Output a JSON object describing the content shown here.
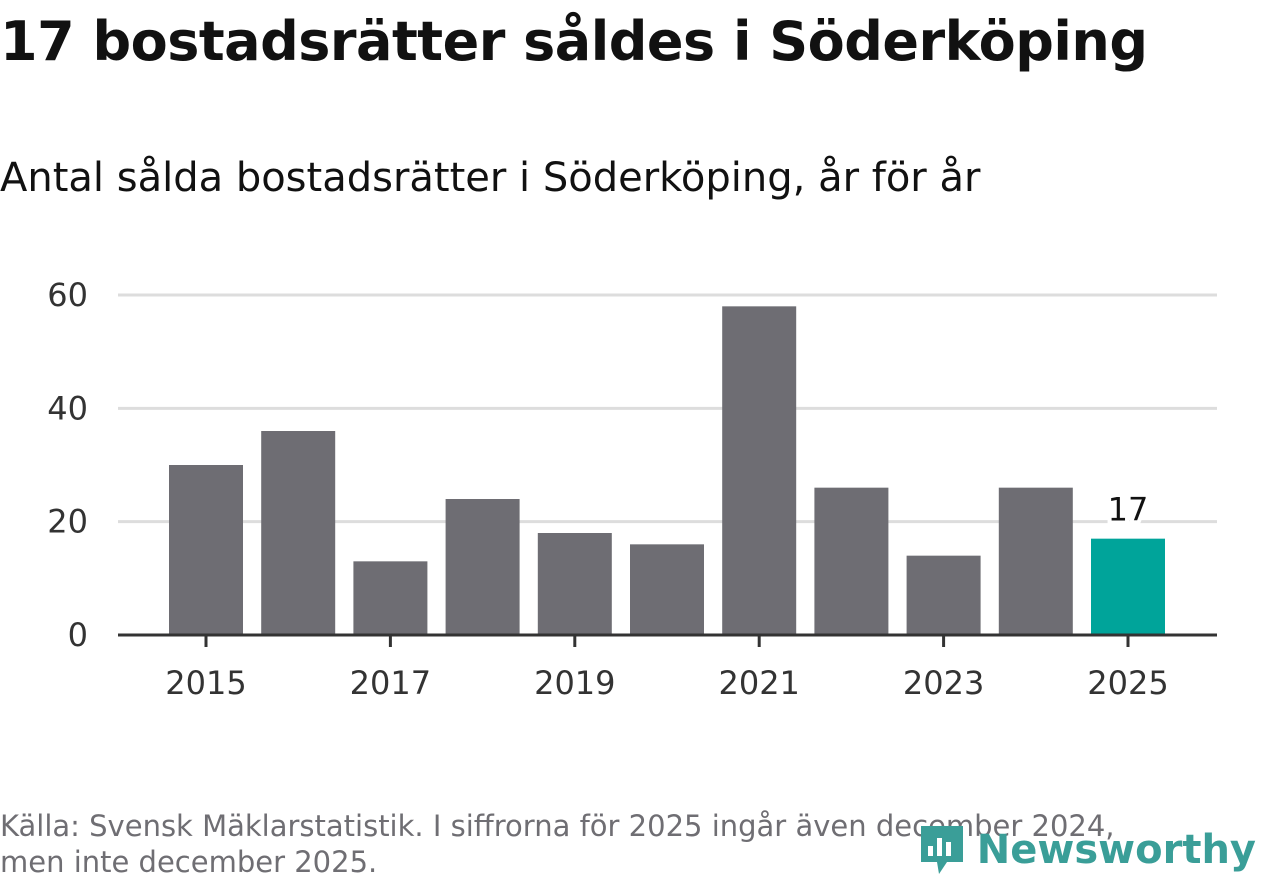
{
  "title": "17 bostadsrätter såldes i Söderköping",
  "subtitle": "Antal sålda bostadsrätter i Söderköping, år för år",
  "source_line1": "Källa: Svensk Mäklarstatistik. I siffrorna för 2025 ingår även december 2024,",
  "source_line2": "men inte december 2025.",
  "logo_text": "Newsworthy",
  "colors": {
    "bar": "#6e6d73",
    "highlight": "#00a49a",
    "grid": "#dddddd",
    "axis": "#333333"
  },
  "chart_data": {
    "type": "bar",
    "title": "Antal sålda bostadsrätter i Söderköping, år för år",
    "xlabel": "",
    "ylabel": "",
    "categories": [
      "2015",
      "2016",
      "2017",
      "2018",
      "2019",
      "2020",
      "2021",
      "2022",
      "2023",
      "2024",
      "2025"
    ],
    "values": [
      30,
      36,
      13,
      24,
      18,
      16,
      58,
      26,
      14,
      26,
      17
    ],
    "highlight_index": 10,
    "highlight_label": "17",
    "x_tick_labels": [
      "2015",
      "2017",
      "2019",
      "2021",
      "2023",
      "2025"
    ],
    "y_ticks": [
      0,
      20,
      40,
      60
    ],
    "ylim": [
      0,
      60
    ],
    "grid": true
  }
}
